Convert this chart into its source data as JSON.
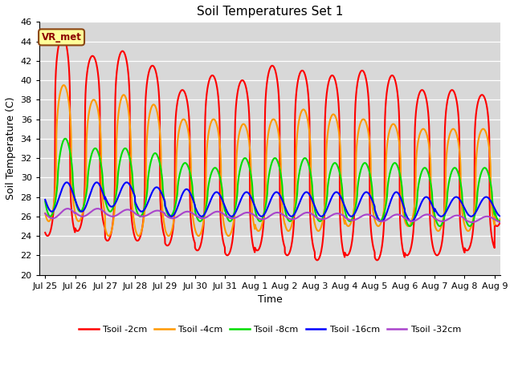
{
  "title": "Soil Temperatures Set 1",
  "xlabel": "Time",
  "ylabel": "Soil Temperature (C)",
  "ylim": [
    20,
    46
  ],
  "yticks": [
    20,
    22,
    24,
    26,
    28,
    30,
    32,
    34,
    36,
    38,
    40,
    42,
    44,
    46
  ],
  "annotation_text": "VR_met",
  "fig_bg_color": "#ffffff",
  "plot_bg_color": "#d8d8d8",
  "grid_color": "#ffffff",
  "series": [
    {
      "label": "Tsoil -2cm",
      "color": "#ff0000",
      "lw": 1.5
    },
    {
      "label": "Tsoil -4cm",
      "color": "#ff9900",
      "lw": 1.5
    },
    {
      "label": "Tsoil -8cm",
      "color": "#00dd00",
      "lw": 1.5
    },
    {
      "label": "Tsoil -16cm",
      "color": "#0000ff",
      "lw": 1.5
    },
    {
      "label": "Tsoil -32cm",
      "color": "#aa44cc",
      "lw": 1.5
    }
  ],
  "xtick_labels": [
    "Jul 25",
    "Jul 26",
    "Jul 27",
    "Jul 28",
    "Jul 29",
    "Jul 30",
    "Jul 31",
    "Aug 1",
    "Aug 2",
    "Aug 3",
    "Aug 4",
    "Aug 5",
    "Aug 6",
    "Aug 7",
    "Aug 8",
    "Aug 9"
  ],
  "n_days": 16,
  "pts_per_day": 200,
  "peak_sharpness_2cm": 4.0,
  "peak_sharpness_4cm": 2.5,
  "peak_sharpness_8cm": 1.5,
  "peak_sharpness_16cm": 1.0,
  "peak_sharpness_32cm": 1.0,
  "peak_time_2cm": 0.58,
  "peak_time_4cm": 0.62,
  "peak_time_8cm": 0.67,
  "peak_time_16cm": 0.72,
  "peak_time_32cm": 0.75,
  "min_2cm": [
    24.0,
    24.5,
    23.5,
    23.5,
    23.0,
    22.5,
    22.0,
    22.5,
    22.0,
    21.5,
    22.0,
    21.5,
    22.0,
    22.0,
    22.5,
    25.0
  ],
  "max_2cm": [
    44.5,
    42.5,
    43.0,
    41.5,
    39.0,
    40.5,
    40.0,
    41.5,
    41.0,
    40.5,
    41.0,
    40.5,
    39.0,
    39.0,
    38.5,
    39.0
  ],
  "min_4cm": [
    25.5,
    25.5,
    24.0,
    24.0,
    24.0,
    24.0,
    24.0,
    24.5,
    24.5,
    24.5,
    25.0,
    25.0,
    25.0,
    24.5,
    24.5,
    25.5
  ],
  "max_4cm": [
    39.5,
    38.0,
    38.5,
    37.5,
    36.0,
    36.0,
    35.5,
    36.0,
    37.0,
    36.5,
    36.0,
    35.5,
    35.0,
    35.0,
    35.0,
    35.0
  ],
  "min_8cm": [
    26.0,
    26.5,
    26.5,
    26.0,
    26.0,
    25.5,
    25.5,
    25.5,
    25.5,
    25.5,
    25.5,
    25.5,
    25.0,
    25.0,
    25.0,
    25.5
  ],
  "max_8cm": [
    34.0,
    33.0,
    33.0,
    32.5,
    31.5,
    31.0,
    32.0,
    32.0,
    32.0,
    31.5,
    31.5,
    31.5,
    31.0,
    31.0,
    31.0,
    31.0
  ],
  "min_16cm": [
    26.5,
    26.5,
    27.0,
    26.5,
    26.0,
    26.0,
    26.0,
    26.0,
    26.0,
    26.0,
    26.0,
    25.5,
    25.5,
    26.0,
    26.0,
    26.0
  ],
  "max_16cm": [
    29.5,
    29.5,
    29.5,
    29.0,
    28.8,
    28.5,
    28.5,
    28.5,
    28.5,
    28.5,
    28.5,
    28.5,
    28.0,
    28.0,
    28.0,
    28.0
  ],
  "min_32cm": [
    25.8,
    26.0,
    26.0,
    26.0,
    25.8,
    25.8,
    25.8,
    25.7,
    25.7,
    25.7,
    25.6,
    25.5,
    25.5,
    25.5,
    25.4,
    25.4
  ],
  "max_32cm": [
    26.8,
    26.8,
    26.7,
    26.6,
    26.5,
    26.5,
    26.4,
    26.4,
    26.4,
    26.3,
    26.2,
    26.2,
    26.2,
    26.1,
    26.0,
    26.0
  ]
}
